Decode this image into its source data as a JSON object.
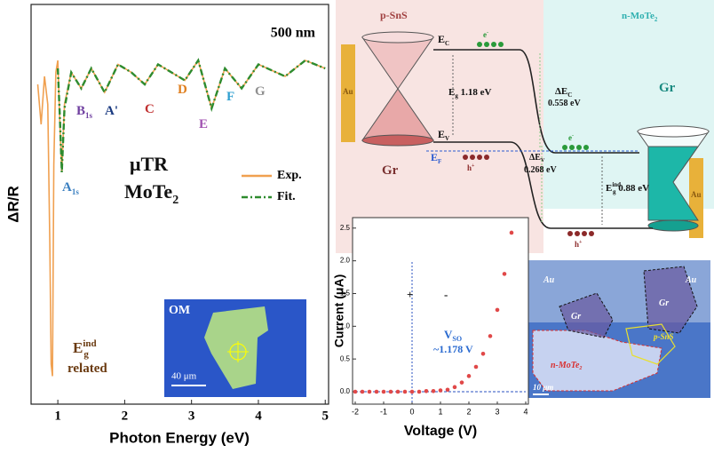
{
  "chart_data": [
    {
      "type": "line",
      "title": "500 nm",
      "xlabel": "Photon Energy (eV)",
      "ylabel": "ΔR/R",
      "x": [
        0.7,
        0.75,
        0.8,
        0.85,
        0.88,
        0.9,
        0.92,
        0.94,
        0.97,
        1.0,
        1.03,
        1.06,
        1.1,
        1.2,
        1.35,
        1.5,
        1.7,
        1.9,
        2.1,
        2.3,
        2.5,
        2.7,
        2.9,
        3.1,
        3.3,
        3.5,
        3.75,
        4.0,
        4.4,
        4.7,
        5.0
      ],
      "series": [
        {
          "name": "Exp.",
          "color": "#f0a050",
          "values": [
            80,
            70,
            82,
            75,
            40,
            10,
            7,
            60,
            83,
            86,
            70,
            58,
            75,
            83,
            79,
            84,
            78,
            85,
            83,
            80,
            85,
            83,
            81,
            86,
            74,
            84,
            79,
            85,
            82,
            86,
            84
          ]
        },
        {
          "name": "Fit.",
          "color": "#2e8b2e",
          "values": [
            null,
            null,
            null,
            null,
            null,
            null,
            null,
            null,
            null,
            84,
            72,
            58,
            74,
            83,
            79,
            84,
            78,
            85,
            83,
            80,
            85,
            83,
            81,
            86,
            74,
            84,
            79,
            85,
            82,
            86,
            84
          ]
        }
      ],
      "xlim": [
        0.6,
        5.05
      ],
      "xticks": [
        1,
        2,
        3,
        4,
        5
      ],
      "ylim": [
        0,
        100
      ],
      "annotations": [
        {
          "text": "A",
          "sub": "1s"
        },
        {
          "text": "B",
          "sub": "1s"
        },
        {
          "text": "A'"
        },
        {
          "text": "C"
        },
        {
          "text": "D"
        },
        {
          "text": "E"
        },
        {
          "text": "F"
        },
        {
          "text": "G"
        },
        {
          "text": "μTR"
        },
        {
          "text": "MoTe",
          "sub": "2"
        },
        {
          "text": "E",
          "sub": "g",
          "sup": "ind"
        },
        {
          "text": "related"
        }
      ],
      "inset": {
        "title": "OM",
        "scale": "40 μm"
      }
    },
    {
      "type": "scatter",
      "xlabel": "Voltage (V)",
      "ylabel": "Current (μA)",
      "x": [
        -2,
        -1.75,
        -1.5,
        -1.25,
        -1,
        -0.75,
        -0.5,
        -0.25,
        0,
        0.25,
        0.5,
        0.75,
        1,
        1.25,
        1.5,
        1.75,
        2,
        2.25,
        2.5,
        2.75,
        3,
        3.25,
        3.5
      ],
      "values": [
        0,
        0,
        0,
        0,
        0,
        0,
        0,
        0,
        0,
        0,
        0.01,
        0.01,
        0.02,
        0.03,
        0.07,
        0.14,
        0.24,
        0.38,
        0.58,
        0.85,
        1.25,
        1.8,
        2.43
      ],
      "color": "#e04848",
      "xlim": [
        -2,
        4
      ],
      "xticks": [
        -2,
        -1,
        0,
        1,
        2,
        3,
        4
      ],
      "ylim": [
        -0.19,
        2.66
      ],
      "yticks": [
        {
          "value": 0,
          "label": "0.0"
        },
        0.5,
        {
          "value": 1,
          "label": "1.0"
        },
        1.5,
        {
          "value": 2,
          "label": "2.0"
        },
        2.5
      ],
      "annotations": [
        {
          "text": "V",
          "sub": "SO"
        },
        {
          "text": "~1.178 V"
        },
        {
          "text": "+"
        },
        {
          "text": "-"
        }
      ]
    }
  ],
  "band_diagram": {
    "labels": [
      {
        "text": "p-SnS"
      },
      {
        "text": "n-MoTe",
        "sub": "2"
      },
      {
        "text": "E",
        "sub": "C"
      },
      {
        "text": "E",
        "sub": "g",
        "after": " 1.18 eV"
      },
      {
        "text": "ΔE",
        "sub": "C"
      },
      {
        "text": "0.558 eV"
      },
      {
        "text": "E",
        "sub": "V"
      },
      {
        "text": "E",
        "sub": "F"
      },
      {
        "text": "ΔE",
        "sub": "V"
      },
      {
        "text": "0.268 eV"
      },
      {
        "text": "E",
        "sub": "g",
        "sup": "ind",
        "after": " 0.88 eV"
      },
      {
        "text": "Gr"
      },
      {
        "text": "Gr"
      },
      {
        "text": "Au"
      },
      {
        "text": "Au"
      },
      {
        "text": "e",
        "sup": "-"
      },
      {
        "text": "e",
        "sup": "-"
      },
      {
        "text": "h",
        "sup": "+"
      },
      {
        "text": "h",
        "sup": "+"
      }
    ]
  },
  "optical_image": {
    "labels": [
      {
        "text": "Au"
      },
      {
        "text": "Au"
      },
      {
        "text": "Gr"
      },
      {
        "text": "Gr"
      },
      {
        "text": "p-SnS"
      },
      {
        "text": "n-MoTe",
        "sub": "2"
      },
      {
        "text": "10 μm"
      }
    ]
  }
}
